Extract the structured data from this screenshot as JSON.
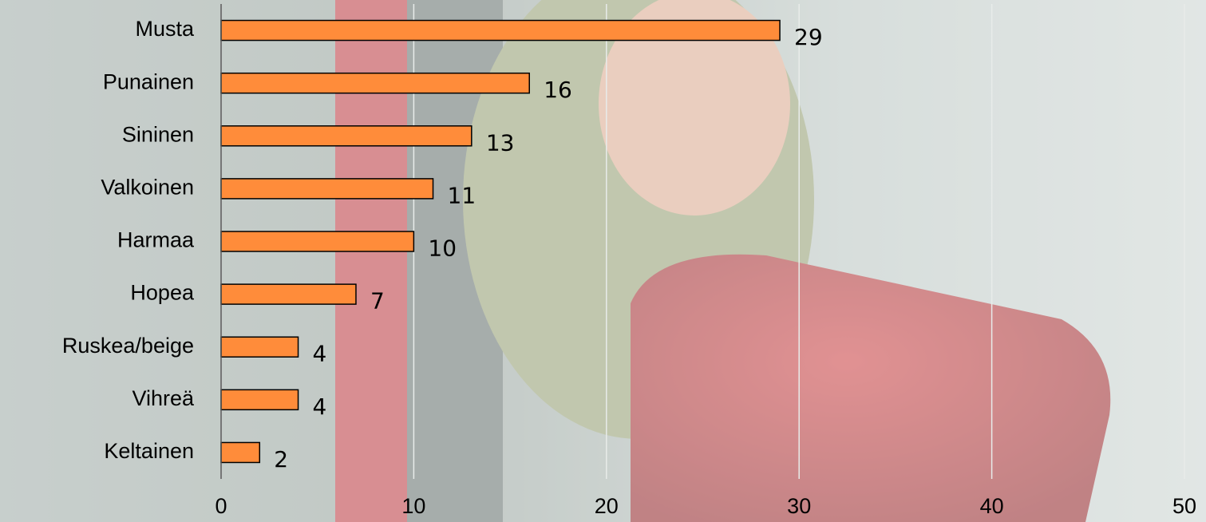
{
  "chart_data": {
    "type": "bar",
    "orientation": "horizontal",
    "categories": [
      "Musta",
      "Punainen",
      "Sininen",
      "Valkoinen",
      "Harmaa",
      "Hopea",
      "Ruskea/beige",
      "Vihreä",
      "Keltainen"
    ],
    "values": [
      29,
      16,
      13,
      11,
      10,
      7,
      4,
      4,
      2
    ],
    "color": "#ff8c3a",
    "xlim": [
      0,
      50
    ],
    "xticks": [
      0,
      10,
      20,
      30,
      40,
      50
    ],
    "grid": true
  }
}
